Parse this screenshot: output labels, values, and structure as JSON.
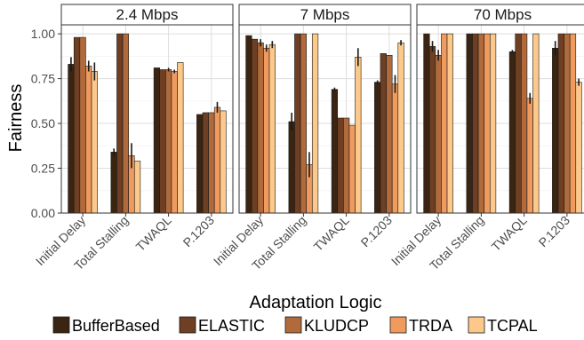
{
  "chart_data": {
    "type": "bar",
    "xlabel": "Adaptation Logic",
    "ylabel": "Fairness",
    "ylim": [
      0,
      1.05
    ],
    "y_ticks": [
      "0.00",
      "0.25",
      "0.50",
      "0.75",
      "1.00"
    ],
    "y_tick_values": [
      0,
      0.25,
      0.5,
      0.75,
      1.0
    ],
    "categories": [
      "Initial Delay",
      "Total Stalling",
      "TWAQL",
      "P.1203"
    ],
    "grid": true,
    "legend_position": "bottom",
    "series_names": [
      "BufferBased",
      "ELASTIC",
      "KLUDCP",
      "TRDA",
      "TCPAL"
    ],
    "colors": [
      "#3b2412",
      "#6e3f22",
      "#b06a3c",
      "#f09a5e",
      "#fdc98b"
    ],
    "panels": [
      {
        "title": "2.4 Mbps",
        "values": [
          [
            0.83,
            0.98,
            0.98,
            0.82,
            0.79
          ],
          [
            0.34,
            1.0,
            1.0,
            0.32,
            0.29
          ],
          [
            0.81,
            0.8,
            0.8,
            0.79,
            0.84
          ],
          [
            0.55,
            0.56,
            0.56,
            0.59,
            0.57
          ]
        ],
        "errors": [
          [
            0.04,
            0.005,
            0.005,
            0.03,
            0.05
          ],
          [
            0.02,
            0.005,
            0.005,
            0.07,
            0.005
          ],
          [
            0.005,
            0.005,
            0.01,
            0.01,
            0.005
          ],
          [
            0.005,
            0.005,
            0.005,
            0.03,
            0.005
          ]
        ]
      },
      {
        "title": "7 Mbps",
        "values": [
          [
            0.99,
            0.97,
            0.95,
            0.92,
            0.94
          ],
          [
            0.51,
            1.0,
            1.0,
            0.27,
            1.0
          ],
          [
            0.69,
            0.53,
            0.53,
            0.49,
            0.87
          ],
          [
            0.73,
            0.89,
            0.88,
            0.72,
            0.95
          ]
        ],
        "errors": [
          [
            0.005,
            0.005,
            0.02,
            0.02,
            0.02
          ],
          [
            0.05,
            0.005,
            0.005,
            0.07,
            0.005
          ],
          [
            0.01,
            0.005,
            0.005,
            0.005,
            0.05
          ],
          [
            0.01,
            0.005,
            0.005,
            0.05,
            0.015
          ]
        ]
      },
      {
        "title": "70 Mbps",
        "values": [
          [
            1.0,
            0.93,
            0.88,
            1.0,
            1.0
          ],
          [
            1.0,
            1.0,
            1.0,
            1.0,
            1.0
          ],
          [
            0.9,
            1.0,
            1.0,
            0.64,
            1.0
          ],
          [
            0.92,
            1.0,
            1.0,
            1.0,
            0.73
          ]
        ],
        "errors": [
          [
            0.005,
            0.03,
            0.03,
            0.005,
            0.005
          ],
          [
            0.005,
            0.005,
            0.005,
            0.005,
            0.005
          ],
          [
            0.01,
            0.005,
            0.005,
            0.03,
            0.005
          ],
          [
            0.04,
            0.005,
            0.005,
            0.005,
            0.02
          ]
        ]
      }
    ]
  }
}
